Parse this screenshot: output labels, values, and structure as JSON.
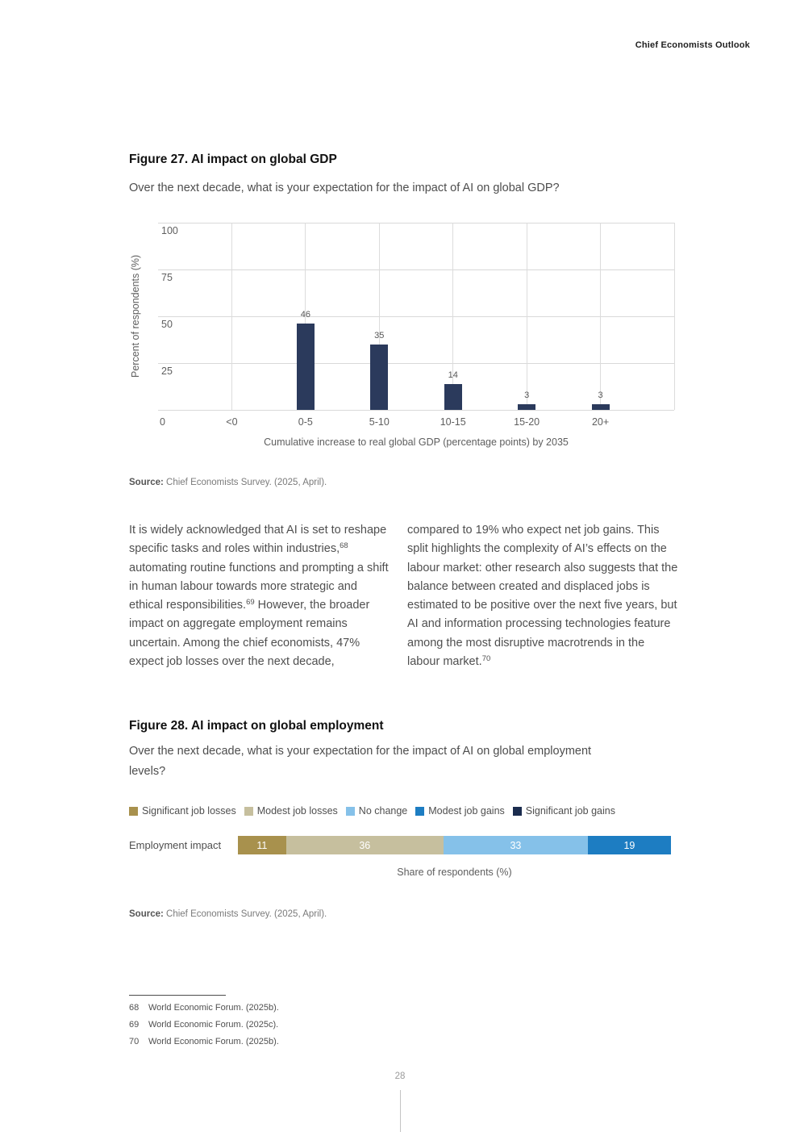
{
  "header": {
    "title": "Chief Economists Outlook"
  },
  "figure27": {
    "title": "Figure 27. AI impact on global GDP",
    "subtitle": "Over the next decade, what is your expectation for the impact of AI on global GDP?",
    "source_label": "Source:",
    "source_text": "Chief Economists Survey. (2025, April)."
  },
  "figure28": {
    "title": "Figure 28. AI impact on global employment",
    "subtitle": "Over the next decade, what is your expectation for the impact of AI on global employment levels?",
    "source_label": "Source:",
    "source_text": "Chief Economists Survey. (2025, April)."
  },
  "chart_data": [
    {
      "type": "bar",
      "title": "Figure 27. AI impact on global GDP",
      "question": "Over the next decade, what is your expectation for the impact of AI on global GDP?",
      "categories": [
        "<0",
        "0-5",
        "5-10",
        "10-15",
        "15-20",
        "20+"
      ],
      "values": [
        0,
        46,
        35,
        14,
        3,
        3
      ],
      "xlabel": "Cumulative increase to real global GDP (percentage points) by 2035",
      "ylabel": "Percent of respondents (%)",
      "yticks": [
        0,
        25,
        50,
        75,
        100
      ],
      "ylim": [
        0,
        100
      ],
      "grid": true,
      "bar_color": "#2b3a5c"
    },
    {
      "type": "stacked-bar",
      "title": "Figure 28. AI impact on global employment",
      "question": "Over the next decade, what is your expectation for the impact of AI on global employment levels?",
      "row_label": "Employment impact",
      "xlabel": "Share of respondents (%)",
      "legend_position": "top",
      "series": [
        {
          "name": "Significant job losses",
          "value": 11,
          "color": "#a8914d"
        },
        {
          "name": "Modest job losses",
          "value": 36,
          "color": "#c6bf9e"
        },
        {
          "name": "No change",
          "value": 33,
          "color": "#85c1e9"
        },
        {
          "name": "Modest job gains",
          "value": 19,
          "color": "#1d7dc2"
        },
        {
          "name": "Significant job gains",
          "value": 0,
          "color": "#1b2c4e"
        }
      ]
    }
  ],
  "body": {
    "left_column": [
      {
        "t": "It is widely acknowledged that AI is set to reshape specific tasks and roles within industries,"
      },
      {
        "sup": "68"
      },
      {
        "t": " automating routine functions and prompting a shift in human labour towards more strategic and ethical responsibilities."
      },
      {
        "sup": "69"
      },
      {
        "t": " However, the broader impact on aggregate employment remains uncertain. Among the chief economists, 47% expect job losses over the next decade,"
      }
    ],
    "right_column": [
      {
        "t": "compared to 19% who expect net job gains. This split highlights the complexity of AI’s effects on the labour market: other research also suggests that the balance between created and displaced jobs is estimated to be positive over the next five years, but AI and information processing technologies feature among the most disruptive macrotrends in the labour market."
      },
      {
        "sup": "70"
      }
    ]
  },
  "footnotes": {
    "items": [
      {
        "num": "68",
        "text": "World Economic Forum. (2025b)."
      },
      {
        "num": "69",
        "text": "World Economic Forum. (2025c)."
      },
      {
        "num": "70",
        "text": "World Economic Forum. (2025b)."
      }
    ]
  },
  "footer": {
    "page_number": "28"
  },
  "colors": {
    "bar_navy": "#2b3a5c",
    "gold_dark": "#a8914d",
    "khaki": "#c6bf9e",
    "blue_light": "#85c1e9",
    "blue": "#1d7dc2",
    "navy_dark": "#1b2c4e"
  }
}
